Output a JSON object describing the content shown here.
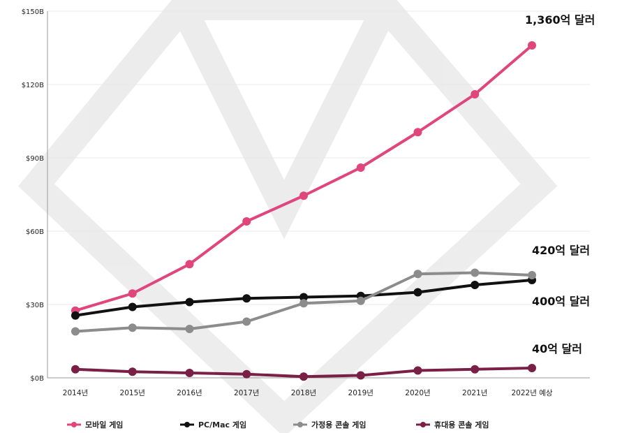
{
  "chart_data": {
    "type": "line",
    "title": "",
    "xlabel": "",
    "ylabel": "",
    "categories": [
      "2014년",
      "2015년",
      "2016년",
      "2017년",
      "2018년",
      "2019년",
      "2020년",
      "2021년",
      "2022년 예상"
    ],
    "y_ticks": [
      "$0B",
      "$30B",
      "$60B",
      "$90B",
      "$120B",
      "$150B"
    ],
    "ylim": [
      0,
      150
    ],
    "grid": true,
    "legend_position": "bottom",
    "series": [
      {
        "name": "모바일 게임",
        "color": "#e0457b",
        "values": [
          27.5,
          34.5,
          46.5,
          64,
          74.5,
          86,
          100.5,
          116,
          136
        ]
      },
      {
        "name": "PC/Mac 게임",
        "color": "#111111",
        "values": [
          25.5,
          29,
          31,
          32.5,
          33,
          33.5,
          35,
          38,
          40
        ]
      },
      {
        "name": "가정용 콘솔 게임",
        "color": "#8c8c8c",
        "values": [
          19,
          20.5,
          20,
          23,
          30.5,
          31.5,
          42.5,
          43,
          42
        ]
      },
      {
        "name": "휴대용 콘솔 게임",
        "color": "#7a1f45",
        "values": [
          3.5,
          2.5,
          2,
          1.5,
          0.5,
          1,
          3,
          3.5,
          4
        ]
      }
    ],
    "annotations": [
      {
        "text": "1,360억 달러",
        "series": "모바일 게임"
      },
      {
        "text": "420억 달러",
        "series": "가정용 콘솔 게임"
      },
      {
        "text": "400억 달러",
        "series": "PC/Mac 게임"
      },
      {
        "text": "40억 달러",
        "series": "휴대용 콘솔 게임"
      }
    ]
  }
}
